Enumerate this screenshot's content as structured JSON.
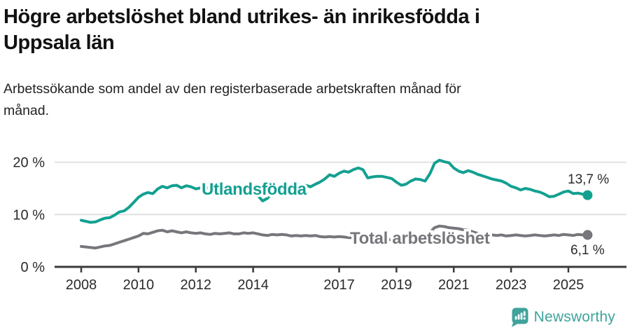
{
  "header": {
    "title_line1": "Högre arbetslöshet bland utrikes- än inrikesfödda i",
    "title_line2": "Uppsala län",
    "subtitle_line1": "Arbetssökande som andel av den registerbaserade arbetskraften månad för",
    "subtitle_line2": "månad."
  },
  "footer": {
    "brand": "Newsworthy",
    "brand_color": "#3fa39b"
  },
  "colors": {
    "foreign_born_line": "#13a091",
    "total_line": "#76767b",
    "axis": "#3a3a3a",
    "gridline": "#e0e0e0",
    "tick_text": "#2a2a2a",
    "value_label_text": "#2b2b2b"
  },
  "chart_data": {
    "type": "line",
    "title": "Högre arbetslöshet bland utrikes- än inrikesfödda i Uppsala län",
    "subtitle": "Arbetssökande som andel av den registerbaserade arbetskraften månad för månad.",
    "x_unit": "decimal_year_monthly",
    "xlim": [
      2007.05,
      2027.0
    ],
    "ylim": [
      0,
      22
    ],
    "grid": "horizontal",
    "legend_position": "inline-labels-on-lines",
    "yticks": [
      {
        "value": 0,
        "label": "0 %"
      },
      {
        "value": 10,
        "label": "10 %"
      },
      {
        "value": 20,
        "label": "20 %"
      }
    ],
    "xticks": [
      {
        "value": 2008,
        "label": "2008"
      },
      {
        "value": 2010,
        "label": "2010"
      },
      {
        "value": 2012,
        "label": "2012"
      },
      {
        "value": 2014,
        "label": "2014"
      },
      {
        "value": 2017,
        "label": "2017"
      },
      {
        "value": 2019,
        "label": "2019"
      },
      {
        "value": 2021,
        "label": "2021"
      },
      {
        "value": 2023,
        "label": "2023"
      },
      {
        "value": 2025,
        "label": "2025"
      }
    ],
    "series": [
      {
        "name": "Utlandsfödda",
        "color": "#13a091",
        "end_value": 13.7,
        "end_label": {
          "text": "13,7 %",
          "x": 811,
          "y": 64
        },
        "inline_label": {
          "text": "Utlandsfödda",
          "x": 288,
          "y": 80
        },
        "x": [
          2008.0,
          2008.17,
          2008.33,
          2008.5,
          2008.67,
          2008.83,
          2009.0,
          2009.17,
          2009.33,
          2009.5,
          2009.67,
          2009.83,
          2010.0,
          2010.17,
          2010.33,
          2010.5,
          2010.67,
          2010.83,
          2011.0,
          2011.17,
          2011.33,
          2011.5,
          2011.67,
          2011.83,
          2012.0,
          2012.17,
          2012.33,
          2012.5,
          2012.67,
          2012.83,
          2013.0,
          2013.17,
          2013.33,
          2013.5,
          2013.67,
          2013.83,
          2014.0,
          2014.17,
          2014.33,
          2014.5,
          2014.67,
          2014.83,
          2015.0,
          2015.17,
          2015.33,
          2015.5,
          2015.67,
          2015.83,
          2016.0,
          2016.17,
          2016.33,
          2016.5,
          2016.67,
          2016.83,
          2017.0,
          2017.17,
          2017.33,
          2017.5,
          2017.67,
          2017.83,
          2018.0,
          2018.17,
          2018.33,
          2018.5,
          2018.67,
          2018.83,
          2019.0,
          2019.17,
          2019.33,
          2019.5,
          2019.67,
          2019.83,
          2020.0,
          2020.17,
          2020.33,
          2020.5,
          2020.67,
          2020.83,
          2021.0,
          2021.17,
          2021.33,
          2021.5,
          2021.67,
          2021.83,
          2022.0,
          2022.17,
          2022.33,
          2022.5,
          2022.67,
          2022.83,
          2023.0,
          2023.17,
          2023.33,
          2023.5,
          2023.67,
          2023.83,
          2024.0,
          2024.17,
          2024.33,
          2024.5,
          2024.67,
          2024.83,
          2025.0,
          2025.17,
          2025.33,
          2025.5,
          2025.67
        ],
        "values": [
          8.9,
          8.7,
          8.5,
          8.6,
          9.0,
          9.3,
          9.4,
          9.9,
          10.5,
          10.7,
          11.4,
          12.3,
          13.3,
          13.9,
          14.2,
          14.0,
          14.9,
          15.4,
          15.1,
          15.5,
          15.6,
          15.1,
          15.5,
          15.3,
          14.9,
          15.1,
          15.3,
          14.9,
          15.1,
          15.2,
          15.0,
          15.3,
          14.6,
          14.3,
          14.8,
          15.0,
          14.7,
          13.6,
          12.6,
          13.1,
          14.2,
          14.7,
          15.0,
          15.1,
          14.9,
          15.1,
          15.5,
          15.6,
          15.3,
          15.8,
          16.2,
          16.8,
          17.6,
          17.3,
          17.9,
          18.3,
          18.1,
          18.6,
          18.9,
          18.6,
          17.0,
          17.2,
          17.3,
          17.3,
          17.1,
          16.9,
          16.2,
          15.6,
          15.8,
          16.4,
          16.8,
          16.7,
          16.4,
          17.8,
          19.8,
          20.4,
          20.1,
          19.9,
          18.9,
          18.3,
          18.0,
          18.4,
          18.1,
          17.7,
          17.4,
          17.1,
          16.8,
          16.6,
          16.4,
          16.0,
          15.4,
          15.1,
          14.7,
          15.0,
          14.8,
          14.5,
          14.3,
          13.9,
          13.4,
          13.5,
          13.9,
          14.3,
          14.5,
          14.0,
          14.1,
          13.9,
          13.7
        ]
      },
      {
        "name": "Total arbetslöshet",
        "color": "#76767b",
        "end_value": 6.1,
        "end_label": {
          "text": "6,1 %",
          "x": 815,
          "y": 165
        },
        "inline_label": {
          "text": "Total arbetslöshet",
          "x": 500,
          "y": 150
        },
        "x": [
          2008.0,
          2008.17,
          2008.33,
          2008.5,
          2008.67,
          2008.83,
          2009.0,
          2009.17,
          2009.33,
          2009.5,
          2009.67,
          2009.83,
          2010.0,
          2010.17,
          2010.33,
          2010.5,
          2010.67,
          2010.83,
          2011.0,
          2011.17,
          2011.33,
          2011.5,
          2011.67,
          2011.83,
          2012.0,
          2012.17,
          2012.33,
          2012.5,
          2012.67,
          2012.83,
          2013.0,
          2013.17,
          2013.33,
          2013.5,
          2013.67,
          2013.83,
          2014.0,
          2014.17,
          2014.33,
          2014.5,
          2014.67,
          2014.83,
          2015.0,
          2015.17,
          2015.33,
          2015.5,
          2015.67,
          2015.83,
          2016.0,
          2016.17,
          2016.33,
          2016.5,
          2016.67,
          2016.83,
          2017.0,
          2017.17,
          2017.33,
          2017.5,
          2017.67,
          2017.83,
          2018.0,
          2018.17,
          2018.33,
          2018.5,
          2018.67,
          2018.83,
          2019.0,
          2019.17,
          2019.33,
          2019.5,
          2019.67,
          2019.83,
          2020.0,
          2020.17,
          2020.33,
          2020.5,
          2020.67,
          2020.83,
          2021.0,
          2021.17,
          2021.33,
          2021.5,
          2021.67,
          2021.83,
          2022.0,
          2022.17,
          2022.33,
          2022.5,
          2022.67,
          2022.83,
          2023.0,
          2023.17,
          2023.33,
          2023.5,
          2023.67,
          2023.83,
          2024.0,
          2024.17,
          2024.33,
          2024.5,
          2024.67,
          2024.83,
          2025.0,
          2025.17,
          2025.33,
          2025.5,
          2025.67
        ],
        "values": [
          3.9,
          3.8,
          3.7,
          3.6,
          3.8,
          4.0,
          4.1,
          4.4,
          4.7,
          5.0,
          5.3,
          5.6,
          5.9,
          6.4,
          6.3,
          6.6,
          6.9,
          7.0,
          6.7,
          6.9,
          6.7,
          6.5,
          6.7,
          6.5,
          6.4,
          6.5,
          6.3,
          6.2,
          6.4,
          6.3,
          6.4,
          6.5,
          6.3,
          6.3,
          6.5,
          6.4,
          6.5,
          6.3,
          6.1,
          6.0,
          6.2,
          6.1,
          6.2,
          6.1,
          5.9,
          6.0,
          5.9,
          6.0,
          5.9,
          6.0,
          5.8,
          5.7,
          5.8,
          5.7,
          5.8,
          5.7,
          5.6,
          5.6,
          5.5,
          5.4,
          5.4,
          5.3,
          5.3,
          5.2,
          5.2,
          5.2,
          5.2,
          5.1,
          5.1,
          5.2,
          5.3,
          5.4,
          5.6,
          6.6,
          7.5,
          7.8,
          7.7,
          7.5,
          7.4,
          7.3,
          7.1,
          7.0,
          6.7,
          6.4,
          6.2,
          6.3,
          6.1,
          6.0,
          6.1,
          5.9,
          6.0,
          6.1,
          6.0,
          5.9,
          6.0,
          6.1,
          6.0,
          5.9,
          6.0,
          6.1,
          6.0,
          6.2,
          6.1,
          6.0,
          6.2,
          6.1,
          6.1
        ]
      }
    ]
  }
}
